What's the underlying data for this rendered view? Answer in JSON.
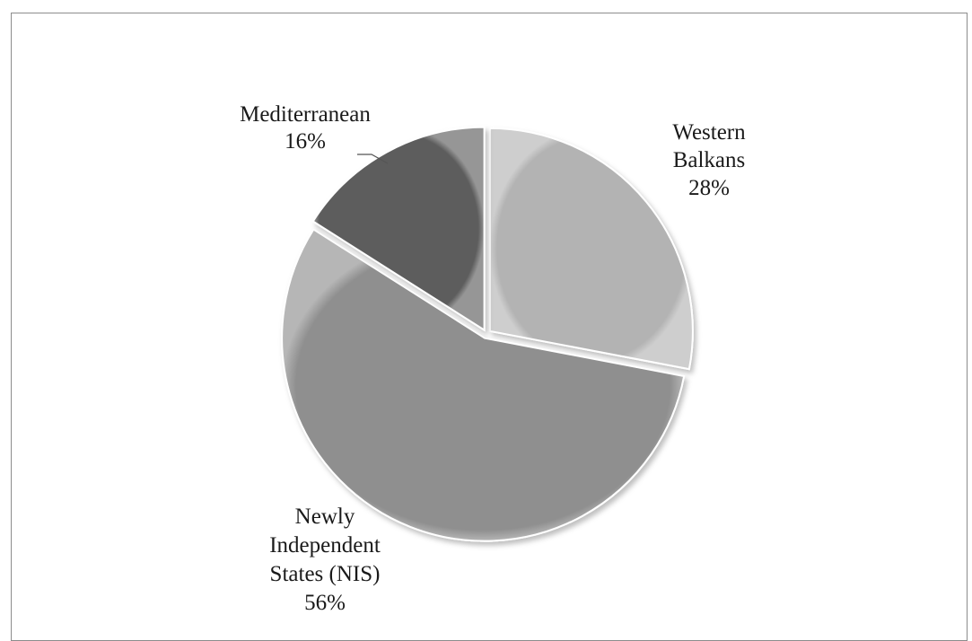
{
  "chart_data": {
    "type": "pie",
    "title": "",
    "start_angle_deg": 0,
    "direction": "clockwise",
    "slices": [
      {
        "label_lines": [
          "Western",
          "Balkans"
        ],
        "percent_label": "28%",
        "value": 28,
        "color": "#b3b3b3"
      },
      {
        "label_lines": [
          "Newly",
          "Independent",
          "States (NIS)"
        ],
        "percent_label": "56%",
        "value": 56,
        "color": "#8f8f8f"
      },
      {
        "label_lines": [
          "Mediterranean"
        ],
        "percent_label": "16%",
        "value": 16,
        "color": "#5d5d5d"
      }
    ],
    "legend": "none",
    "grid": false
  }
}
